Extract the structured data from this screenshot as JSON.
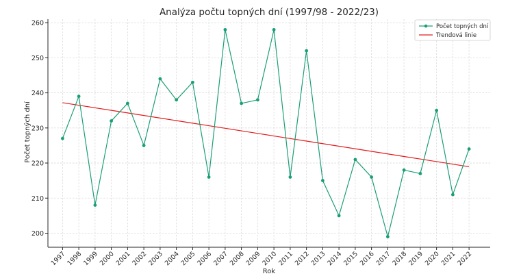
{
  "chart_data": {
    "type": "line",
    "title": "Analýza počtu topných dní (1997/98 - 2022/23)",
    "xlabel": "Rok",
    "ylabel": "Počet topných dní",
    "x": [
      1997,
      1998,
      1999,
      2000,
      2001,
      2002,
      2003,
      2004,
      2005,
      2006,
      2007,
      2008,
      2009,
      2010,
      2011,
      2012,
      2013,
      2014,
      2015,
      2016,
      2017,
      2018,
      2019,
      2020,
      2021,
      2022
    ],
    "x_tick_labels": [
      "1997",
      "1998",
      "1999",
      "2000",
      "2001",
      "2002",
      "2003",
      "2004",
      "2005",
      "2006",
      "2007",
      "2008",
      "2009",
      "2010",
      "2011",
      "2012",
      "2013",
      "2014",
      "2015",
      "2016",
      "2017",
      "2018",
      "2019",
      "2020",
      "2021",
      "2022"
    ],
    "xlim": [
      1996.1,
      2023.3
    ],
    "ylim": [
      196,
      261
    ],
    "y_ticks": [
      200,
      210,
      220,
      230,
      240,
      250,
      260
    ],
    "y_tick_labels": [
      "200",
      "210",
      "220",
      "230",
      "240",
      "250",
      "260"
    ],
    "grid": true,
    "legend_position": "top-right",
    "series": [
      {
        "name": "Počet topných dní",
        "kind": "line-with-markers",
        "color": "#1a9e77",
        "values": [
          227,
          239,
          208,
          232,
          237,
          225,
          244,
          238,
          243,
          216,
          258,
          237,
          238,
          258,
          216,
          252,
          215,
          205,
          221,
          216,
          199,
          218,
          217,
          235,
          211,
          224
        ]
      },
      {
        "name": "Trendová linie",
        "kind": "line",
        "color": "#e41a1c",
        "values": [
          237.2,
          236.47,
          235.74,
          235.01,
          234.28,
          233.55,
          232.82,
          232.09,
          231.36,
          230.63,
          229.9,
          229.17,
          228.44,
          227.71,
          226.98,
          226.25,
          225.52,
          224.79,
          224.06,
          223.33,
          222.6,
          221.87,
          221.14,
          220.41,
          219.68,
          218.95
        ]
      }
    ]
  }
}
